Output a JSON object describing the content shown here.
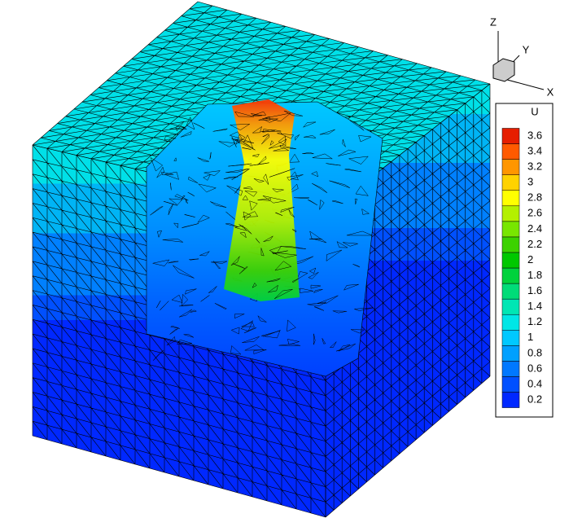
{
  "axes": {
    "x": "X",
    "y": "Y",
    "z": "Z"
  },
  "legend": {
    "title": "U",
    "levels": [
      0.2,
      0.4,
      0.6,
      0.8,
      1,
      1.2,
      1.4,
      1.6,
      1.8,
      2,
      2.2,
      2.4,
      2.6,
      2.8,
      3,
      3.2,
      3.4,
      3.6
    ],
    "colors": [
      "#0028ff",
      "#0050ff",
      "#0078ff",
      "#00a0ff",
      "#00c8ff",
      "#00e6e6",
      "#00e6b4",
      "#00dc78",
      "#00d23c",
      "#00c800",
      "#3cd200",
      "#78e600",
      "#b4f000",
      "#ffff00",
      "#ffd200",
      "#ff9600",
      "#ff5a00",
      "#e61e00"
    ]
  }
}
